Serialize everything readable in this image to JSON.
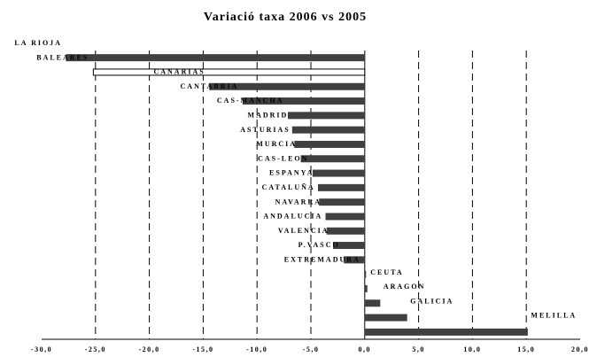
{
  "chart_data": {
    "type": "barh",
    "title": "Variació taxa 2006 vs 2005",
    "categories": [
      "LA RIOJA",
      "BALEARES",
      "CANARIAS",
      "CANTABRIA",
      "CAS-MANCHA",
      "MADRID",
      "ASTURIAS",
      "MURCIA",
      "CAS-LEON",
      "ESPANYA",
      "CATALUÑA",
      "NAVARRA",
      "ANDALUCIA",
      "VALENCIA",
      "P.VASCO",
      "EXTREMADURA",
      "CEUTA",
      "ARAGON",
      "GALICIA",
      "MELILLA"
    ],
    "values": [
      -27.7,
      -25.2,
      -14.4,
      -11.3,
      -7.1,
      -6.7,
      -6.5,
      -5.9,
      -4.8,
      -4.3,
      -4.2,
      -3.6,
      -3.5,
      -2.9,
      -1.9,
      0,
      0.2,
      1.4,
      3.9,
      15.1
    ],
    "colors": [
      "#404040",
      "#ffffff",
      "#404040",
      "#404040",
      "#404040",
      "#404040",
      "#404040",
      "#404040",
      "#404040",
      "#404040",
      "#404040",
      "#404040",
      "#404040",
      "#404040",
      "#404040",
      "#404040",
      "#404040",
      "#404040",
      "#404040",
      "#404040"
    ],
    "xlim": [
      -30,
      20
    ],
    "xticks": [
      {
        "value": -30,
        "label": "-30,0"
      },
      {
        "value": -25,
        "label": "-25,0"
      },
      {
        "value": -20,
        "label": "-20,0"
      },
      {
        "value": -15,
        "label": "-15,0"
      },
      {
        "value": -10,
        "label": "-10,0"
      },
      {
        "value": -5,
        "label": "-5,0"
      },
      {
        "value": 0,
        "label": "0,0"
      },
      {
        "value": 5,
        "label": "5,0"
      },
      {
        "value": 10,
        "label": "10,0"
      },
      {
        "value": 15,
        "label": "15,0"
      },
      {
        "value": 20,
        "label": "20,0"
      }
    ],
    "grid": true
  }
}
